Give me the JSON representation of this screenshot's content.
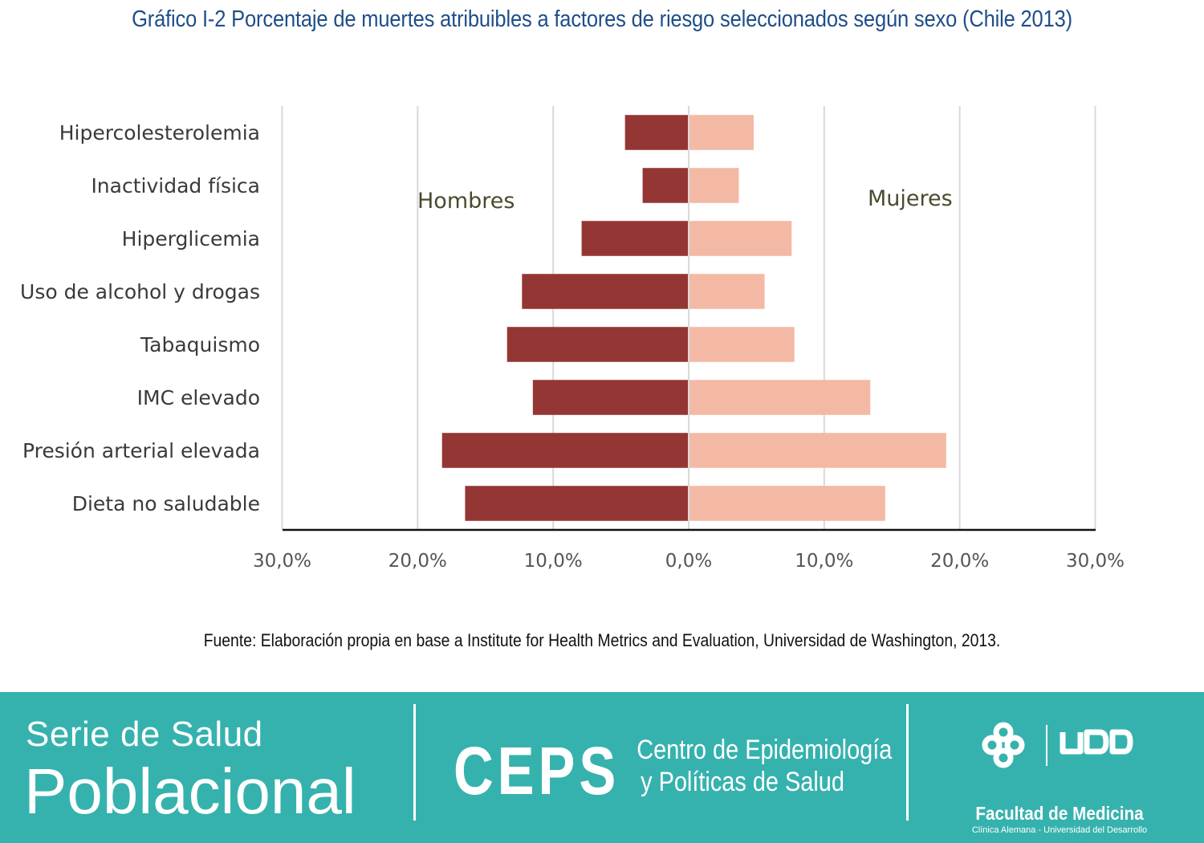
{
  "title": "Gráfico I-2 Porcentaje de muertes atribuibles a factores de riesgo seleccionados según sexo (Chile 2013)",
  "source": "Fuente: Elaboración propia en base a Institute for Health Metrics and Evaluation, Universidad de Washington, 2013.",
  "chart_data": {
    "type": "bar",
    "orientation": "horizontal-diverging",
    "categories": [
      "Hipercolesterolemia",
      "Inactividad física",
      "Hiperglicemia",
      "Uso de alcohol y drogas",
      "Tabaquismo",
      "IMC elevado",
      "Presión arterial elevada",
      "Dieta no saludable"
    ],
    "series": [
      {
        "name": "Hombres",
        "color": "#943634",
        "direction": "left",
        "values": [
          4.7,
          3.4,
          7.9,
          12.3,
          13.4,
          11.5,
          18.2,
          16.5
        ]
      },
      {
        "name": "Mujeres",
        "color": "#f4b9a5",
        "direction": "right",
        "values": [
          4.8,
          3.7,
          7.6,
          5.6,
          7.8,
          13.4,
          19.0,
          14.5
        ]
      }
    ],
    "xlim": [
      -30,
      30
    ],
    "xticks": [
      -30,
      -20,
      -10,
      0,
      10,
      20,
      30
    ],
    "xtick_labels": [
      "30,0%",
      "20,0%",
      "10,0%",
      "0,0%",
      "10,0%",
      "20,0%",
      "30,0%"
    ],
    "grid": "vertical",
    "gridline_color": "#d9d9d9",
    "legend": "inline labels"
  },
  "footer": {
    "background": "#36b2ae",
    "serie_line1": "Serie de Salud",
    "serie_line2": "Poblacional",
    "ceps_logo": "CEPS",
    "ceps_name_line1": "Centro de Epidemiología",
    "ceps_name_line2": "y Políticas de Salud",
    "udd_logo": "UDD",
    "udd_faculty": "Facultad de Medicina",
    "udd_subtitle": "Clínica Alemana - Universidad del Desarrollo"
  }
}
